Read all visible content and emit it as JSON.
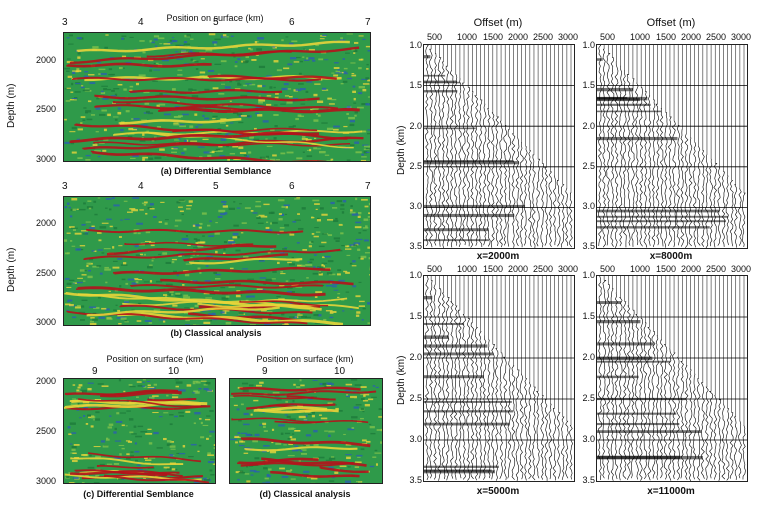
{
  "left": {
    "axis_title": "Position on surface (km)",
    "top_x_ticks": [
      "3",
      "4",
      "5",
      "6",
      "7"
    ],
    "depth_label": "Depth (m)",
    "depth_ticks": [
      "2000",
      "2500",
      "3000"
    ],
    "caption_a": "(a) Differential Semblance",
    "caption_b": "(b) Classical analysis",
    "bottom_x_ticks": [
      "9",
      "10"
    ],
    "caption_c": "(c) Differential Semblance",
    "caption_d": "(d) Classical analysis",
    "colors": {
      "bg": "#2f9a4a",
      "red": "#b5121b",
      "yellow": "#e8d53a",
      "blue": "#2a5fb0"
    }
  },
  "right": {
    "offset_title": "Offset (m)",
    "offset_ticks": [
      "500",
      "1000",
      "1500",
      "2000",
      "2500",
      "3000"
    ],
    "depth_label": "Depth (km)",
    "depth_ticks": [
      "1.0",
      "1.5",
      "2.0",
      "2.5",
      "3.0",
      "3.5"
    ],
    "gathers": [
      "x=2000m",
      "x=8000m",
      "x=5000m",
      "x=11000m"
    ]
  }
}
